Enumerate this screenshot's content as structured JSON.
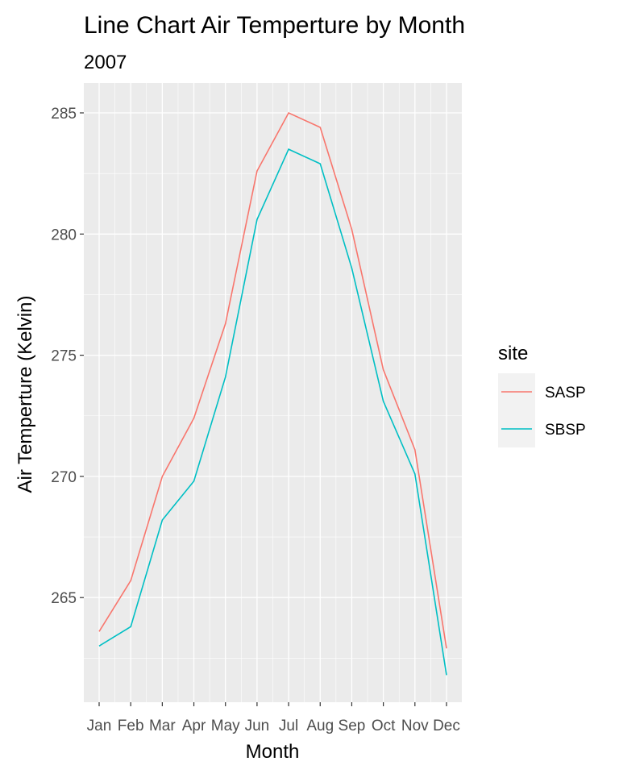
{
  "chart_data": {
    "type": "line",
    "title": "Line Chart Air Temperture by Month",
    "subtitle": "2007",
    "xlabel": "Month",
    "ylabel": "Air Temperture (Kelvin)",
    "categories": [
      "Jan",
      "Feb",
      "Mar",
      "Apr",
      "May",
      "Jun",
      "Jul",
      "Aug",
      "Sep",
      "Oct",
      "Nov",
      "Dec"
    ],
    "ylim": [
      261.0,
      286.0
    ],
    "yticks": [
      265,
      270,
      275,
      280,
      285
    ],
    "grid": true,
    "legend": {
      "title": "site",
      "position": "right"
    },
    "series": [
      {
        "name": "SASP",
        "color": "#F8766D",
        "values": [
          263.6,
          265.7,
          270.0,
          272.4,
          276.3,
          282.6,
          285.0,
          284.4,
          280.2,
          274.4,
          271.1,
          262.9
        ]
      },
      {
        "name": "SBSP",
        "color": "#00BFC4",
        "values": [
          263.0,
          263.8,
          268.2,
          269.8,
          274.1,
          280.6,
          283.5,
          282.9,
          278.6,
          273.1,
          270.1,
          261.8
        ]
      }
    ]
  }
}
